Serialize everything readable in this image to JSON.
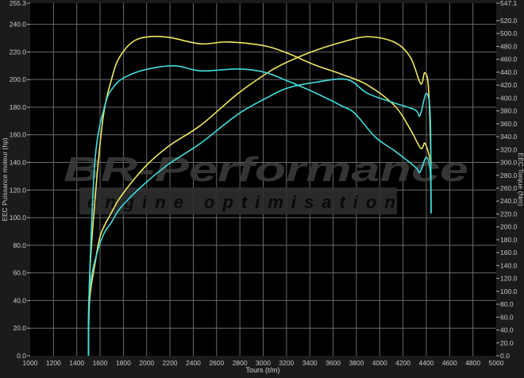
{
  "chart_data": {
    "type": "line",
    "xlabel": "Tours (t/m)",
    "ylabel": "EEC Puissance moteur (hp)",
    "y2label": "EEC Torque (Nm)",
    "xlim": [
      1000,
      5000
    ],
    "ylim": [
      0,
      255.3
    ],
    "y2lim": [
      0,
      547.1
    ],
    "x_ticks": [
      1000,
      1200,
      1400,
      1600,
      1800,
      2000,
      2200,
      2400,
      2600,
      2800,
      3000,
      3200,
      3400,
      3600,
      3800,
      4000,
      4200,
      4400,
      4600,
      4800,
      5000
    ],
    "y_ticks": [
      "0.0",
      "20.0",
      "40.0",
      "60.0",
      "80.0",
      "100.0",
      "120.0",
      "140.0",
      "160.0",
      "180.0",
      "200.0",
      "220.0",
      "240.0",
      "255.3"
    ],
    "y2_ticks": [
      "0.0",
      "20.0",
      "40.0",
      "60.0",
      "80.0",
      "100.0",
      "120.0",
      "140.0",
      "160.0",
      "180.0",
      "200.0",
      "220.0",
      "240.0",
      "260.0",
      "280.0",
      "300.0",
      "320.0",
      "340.0",
      "360.0",
      "380.0",
      "400.0",
      "420.0",
      "440.0",
      "460.0",
      "480.0",
      "500.0",
      "520.0",
      "547.1"
    ],
    "grid": true,
    "series": [
      {
        "axis": "left",
        "color": "#f0e860",
        "x": [
          1500,
          1510,
          1559,
          1606,
          1700,
          1784,
          1988,
          2193,
          2465,
          2785,
          3058,
          3215,
          3446,
          3671,
          3896,
          4128,
          4264,
          4352,
          4387,
          4420,
          4441
        ],
        "y": [
          0,
          40,
          68,
          88,
          104,
          116,
          137,
          152,
          167,
          190,
          206,
          213,
          221,
          227,
          231,
          227,
          216,
          197,
          205,
          193,
          139
        ]
      },
      {
        "axis": "right",
        "color": "#f0e860",
        "x": [
          1500,
          1510,
          1559,
          1627,
          1700,
          1763,
          1879,
          2015,
          2193,
          2465,
          2697,
          3010,
          3215,
          3446,
          3671,
          3896,
          4128,
          4264,
          4352,
          4387,
          4420,
          4441
        ],
        "y": [
          0,
          120,
          248,
          371,
          430,
          462,
          487,
          495,
          494,
          484,
          487,
          481,
          469,
          451,
          437,
          420,
          388,
          351,
          322,
          330,
          314,
          297
        ]
      },
      {
        "axis": "left",
        "color": "#40dcdc",
        "x": [
          1500,
          1511,
          1606,
          1700,
          1784,
          1988,
          2193,
          2465,
          2785,
          3058,
          3215,
          3446,
          3719,
          3896,
          4128,
          4305,
          4346,
          4400,
          4434,
          4441
        ],
        "y": [
          0,
          49,
          83,
          97,
          108,
          125,
          139,
          154,
          175,
          188,
          194,
          198,
          200,
          190,
          183,
          178,
          174,
          190,
          173,
          103
        ]
      },
      {
        "axis": "right",
        "color": "#40dcdc",
        "x": [
          1500,
          1510,
          1559,
          1647,
          1720,
          1811,
          1988,
          2240,
          2465,
          2785,
          3010,
          3215,
          3446,
          3671,
          3787,
          3964,
          4128,
          4305,
          4346,
          4400,
          4434,
          4441
        ],
        "y": [
          0,
          120,
          309,
          392,
          418,
          432,
          444,
          450,
          442,
          445,
          440,
          426,
          408,
          388,
          376,
          339,
          318,
          293,
          285,
          308,
          285,
          222
        ]
      }
    ]
  },
  "watermark": {
    "brand": "BR-Performance",
    "tagline": "engine optimisation"
  }
}
